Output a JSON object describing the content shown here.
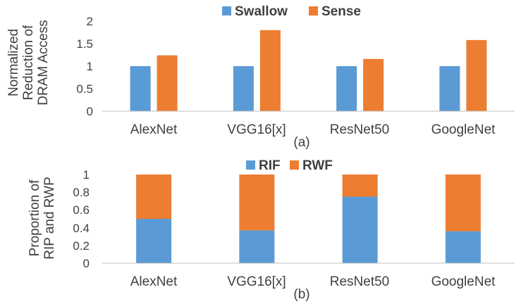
{
  "chart_data": [
    {
      "type": "bar",
      "caption": "(a)",
      "ylabel": [
        "Normalized",
        "Reduction of",
        "DRAM Access"
      ],
      "categories": [
        "AlexNet",
        "VGG16[x]",
        "ResNet50",
        "GoogleNet"
      ],
      "ylim": [
        0,
        2
      ],
      "yticks": [
        "0",
        "0.5",
        "1",
        "1.5",
        "2"
      ],
      "series": [
        {
          "name": "Swallow",
          "color": "#5b9bd5",
          "values": [
            1.0,
            1.0,
            1.0,
            1.0
          ]
        },
        {
          "name": "Sense",
          "color": "#ed7d31",
          "values": [
            1.24,
            1.8,
            1.16,
            1.58
          ]
        }
      ],
      "legend": "top-center",
      "grid": false
    },
    {
      "type": "bar",
      "stacked": true,
      "caption": "(b)",
      "ylabel": [
        "Proportion of",
        "RIP and RWP"
      ],
      "categories": [
        "AlexNet",
        "VGG16[x]",
        "ResNet50",
        "GoogleNet"
      ],
      "ylim": [
        0,
        1
      ],
      "yticks": [
        "0",
        "0.2",
        "0.4",
        "0.6",
        "0.8",
        "1"
      ],
      "series": [
        {
          "name": "RIF",
          "color": "#5b9bd5",
          "values": [
            0.5,
            0.37,
            0.75,
            0.36
          ]
        },
        {
          "name": "RWF",
          "color": "#ed7d31",
          "values": [
            0.5,
            0.63,
            0.25,
            0.64
          ]
        }
      ],
      "legend": "top-center",
      "grid": false
    }
  ]
}
